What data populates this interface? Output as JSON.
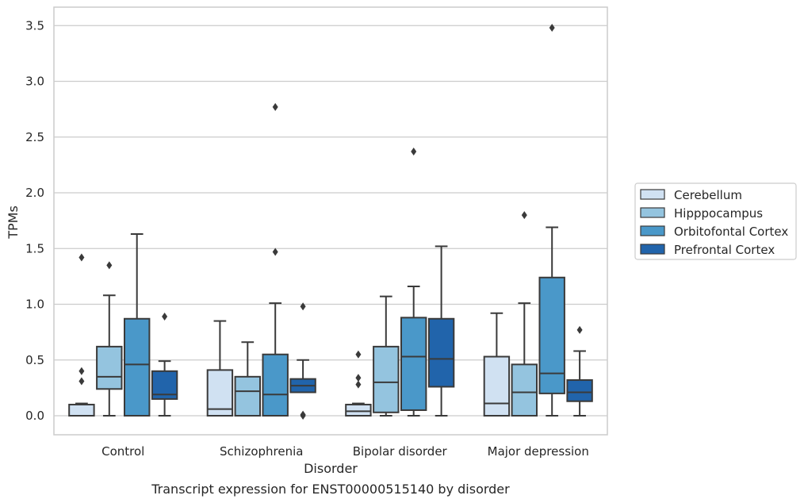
{
  "chart_data": {
    "type": "box",
    "caption": "Transcript expression for ENST00000515140 by disorder",
    "xlabel": "Disorder",
    "ylabel": "TPMs",
    "ylim": [
      -0.17,
      3.66
    ],
    "yticks": [
      "0.0",
      "0.5",
      "1.0",
      "1.5",
      "2.0",
      "2.5",
      "3.0",
      "3.5"
    ],
    "grid": "horizontal",
    "legend_position": "right",
    "categories": [
      "Control",
      "Schizophrenia",
      "Bipolar disorder",
      "Major depression"
    ],
    "series": [
      {
        "name": "Cerebellum",
        "color": "#d0e1f2",
        "boxes": [
          {
            "whislo": 0.0,
            "q1": 0.0,
            "med": 0.0,
            "q3": 0.1,
            "whishi": 0.11,
            "fliers": [
              1.42,
              0.4,
              0.31
            ]
          },
          {
            "whislo": 0.0,
            "q1": 0.0,
            "med": 0.06,
            "q3": 0.41,
            "whishi": 0.85,
            "fliers": []
          },
          {
            "whislo": 0.0,
            "q1": 0.0,
            "med": 0.04,
            "q3": 0.1,
            "whishi": 0.11,
            "fliers": [
              0.55,
              0.34,
              0.28
            ]
          },
          {
            "whislo": 0.0,
            "q1": 0.0,
            "med": 0.11,
            "q3": 0.53,
            "whishi": 0.92,
            "fliers": []
          }
        ]
      },
      {
        "name": "Hipppocampus",
        "color": "#94c4df",
        "boxes": [
          {
            "whislo": 0.0,
            "q1": 0.24,
            "med": 0.35,
            "q3": 0.62,
            "whishi": 1.08,
            "fliers": [
              1.35
            ]
          },
          {
            "whislo": 0.0,
            "q1": 0.0,
            "med": 0.22,
            "q3": 0.35,
            "whishi": 0.66,
            "fliers": []
          },
          {
            "whislo": 0.0,
            "q1": 0.03,
            "med": 0.3,
            "q3": 0.62,
            "whishi": 1.07,
            "fliers": []
          },
          {
            "whislo": 0.0,
            "q1": 0.0,
            "med": 0.21,
            "q3": 0.46,
            "whishi": 1.01,
            "fliers": [
              1.8
            ]
          }
        ]
      },
      {
        "name": "Orbitofontal Cortex",
        "color": "#4a98c9",
        "boxes": [
          {
            "whislo": 0.0,
            "q1": 0.0,
            "med": 0.46,
            "q3": 0.87,
            "whishi": 1.63,
            "fliers": []
          },
          {
            "whislo": 0.0,
            "q1": 0.0,
            "med": 0.19,
            "q3": 0.55,
            "whishi": 1.01,
            "fliers": [
              2.77,
              1.47
            ]
          },
          {
            "whislo": 0.0,
            "q1": 0.05,
            "med": 0.53,
            "q3": 0.88,
            "whishi": 1.16,
            "fliers": [
              2.37
            ]
          },
          {
            "whislo": 0.0,
            "q1": 0.2,
            "med": 0.38,
            "q3": 1.24,
            "whishi": 1.69,
            "fliers": [
              3.48
            ]
          }
        ]
      },
      {
        "name": "Prefrontal Cortex",
        "color": "#2164ab",
        "boxes": [
          {
            "whislo": 0.0,
            "q1": 0.15,
            "med": 0.19,
            "q3": 0.4,
            "whishi": 0.49,
            "fliers": [
              0.89
            ]
          },
          {
            "whislo": 0.21,
            "q1": 0.21,
            "med": 0.27,
            "q3": 0.33,
            "whishi": 0.5,
            "fliers": [
              0.98,
              0.0,
              0.01
            ]
          },
          {
            "whislo": 0.0,
            "q1": 0.26,
            "med": 0.51,
            "q3": 0.87,
            "whishi": 1.52,
            "fliers": []
          },
          {
            "whislo": 0.0,
            "q1": 0.13,
            "med": 0.21,
            "q3": 0.32,
            "whishi": 0.58,
            "fliers": [
              0.77
            ]
          }
        ]
      }
    ]
  }
}
